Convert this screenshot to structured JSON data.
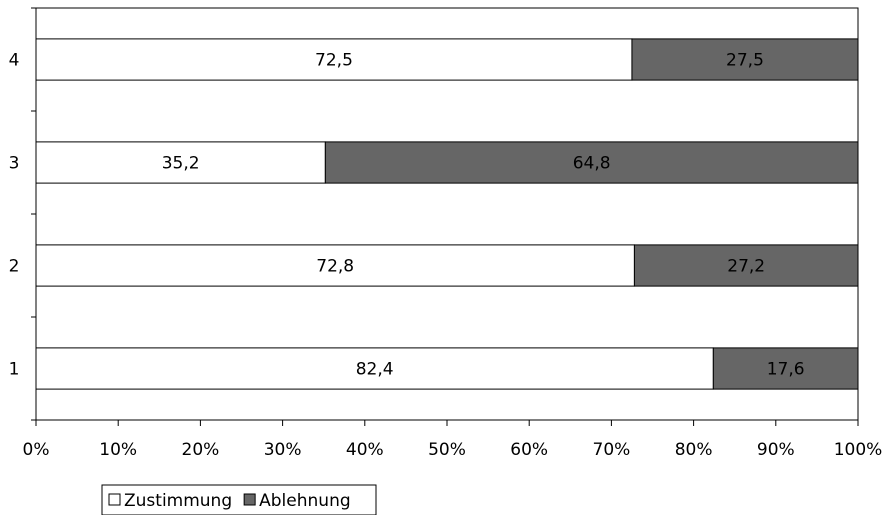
{
  "chart_data": {
    "type": "bar",
    "orientation": "horizontal",
    "stacked": true,
    "percent_stacked": true,
    "categories": [
      "1",
      "2",
      "3",
      "4"
    ],
    "series": [
      {
        "name": "Zustimmung",
        "values": [
          82.4,
          72.8,
          35.2,
          72.5
        ],
        "labels": [
          "82,4",
          "72,8",
          "35,2",
          "72,5"
        ],
        "color": "#ffffff"
      },
      {
        "name": "Ablehnung",
        "values": [
          17.6,
          27.2,
          64.8,
          27.5
        ],
        "labels": [
          "17,6",
          "27,2",
          "64,8",
          "27,5"
        ],
        "color": "#666666"
      }
    ],
    "x_ticks": [
      "0%",
      "10%",
      "20%",
      "30%",
      "40%",
      "50%",
      "60%",
      "70%",
      "80%",
      "90%",
      "100%"
    ],
    "xlim": [
      0,
      100
    ],
    "grid": false,
    "legend_position": "bottom-left",
    "title": "",
    "xlabel": "",
    "ylabel": ""
  }
}
